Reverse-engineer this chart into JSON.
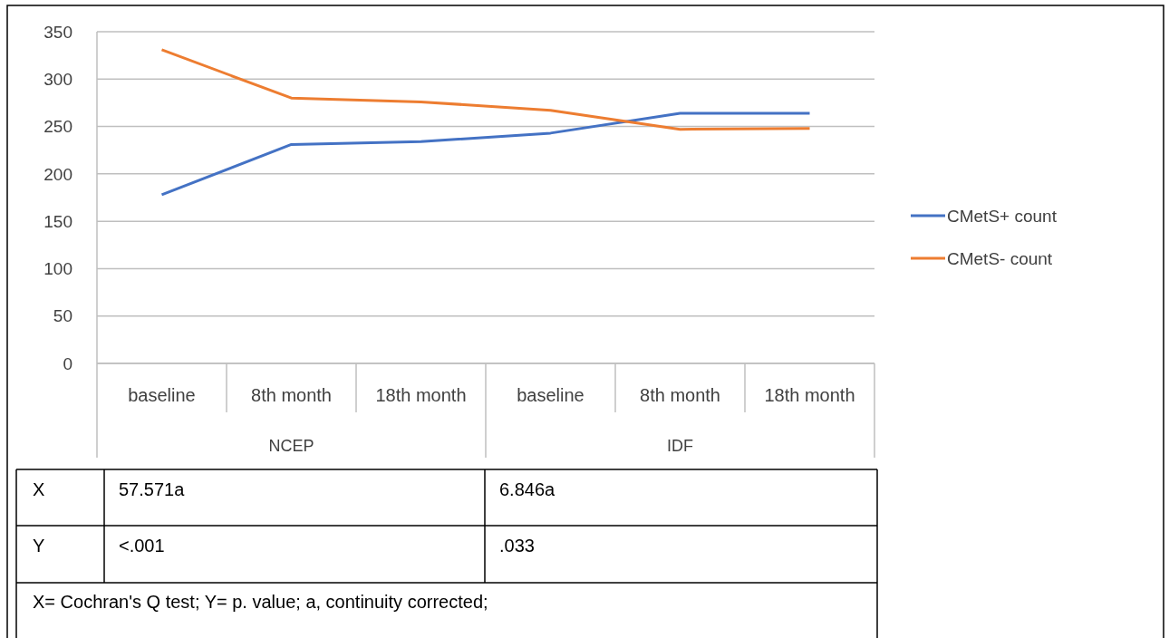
{
  "chart_data": {
    "type": "line",
    "categories": [
      "baseline",
      "8th month",
      "18th month",
      "baseline",
      "8th month",
      "18th month"
    ],
    "series": [
      {
        "name": "CMetS+ count",
        "color": "#4472c4",
        "values": [
          178,
          231,
          234,
          243,
          264,
          264
        ]
      },
      {
        "name": "CMetS- count",
        "color": "#ed7d31",
        "values": [
          331,
          280,
          276,
          267,
          247,
          248
        ]
      }
    ],
    "ylim": [
      0,
      350
    ],
    "yticks": [
      0,
      50,
      100,
      150,
      200,
      250,
      300,
      350
    ],
    "grid": "y",
    "legend": "right",
    "marker": "none",
    "annotations": [
      "NCEP",
      "IDF",
      "X",
      "57.571a",
      "6.846a",
      "Y",
      "<.001",
      ".033",
      "X= Cochran's Q test; Y= p. value; a, continuity corrected;"
    ]
  }
}
